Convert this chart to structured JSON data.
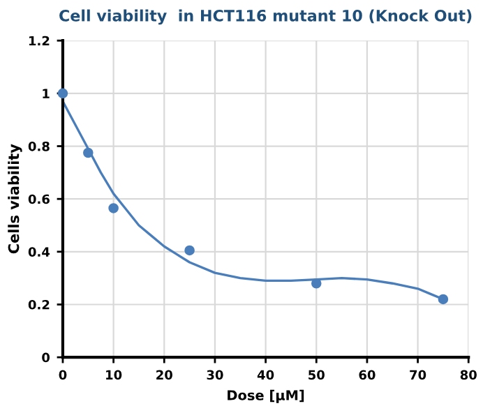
{
  "chart_data": {
    "type": "scatter",
    "title": "Cell viability  in HCT116 mutant 10 (Knock Out)",
    "xlabel": "Dose [µM]",
    "ylabel": "Cells viability",
    "series": [
      {
        "color": "#4a7ebb",
        "marker": "circle",
        "x": [
          0,
          5,
          10,
          25,
          50,
          75
        ],
        "values": [
          1.0,
          0.775,
          0.565,
          0.405,
          0.28,
          0.22
        ]
      },
      {
        "type": "line",
        "color": "#4a7ebb",
        "marker": "none",
        "x": [
          0,
          2.5,
          5,
          7.5,
          10,
          12.5,
          15,
          17.5,
          20,
          22.5,
          25,
          30,
          35,
          40,
          45,
          50,
          55,
          60,
          65,
          70,
          72.5,
          75
        ],
        "values": [
          0.97,
          0.88,
          0.79,
          0.7,
          0.62,
          0.56,
          0.5,
          0.46,
          0.42,
          0.39,
          0.36,
          0.32,
          0.3,
          0.29,
          0.29,
          0.295,
          0.3,
          0.295,
          0.28,
          0.26,
          0.24,
          0.22
        ]
      }
    ],
    "xlim": [
      0,
      80
    ],
    "xticks": [
      0,
      10,
      20,
      30,
      40,
      50,
      60,
      70,
      80
    ],
    "ylim": [
      0,
      1.2
    ],
    "yticks": [
      {
        "value": 0,
        "label": "0"
      },
      {
        "value": 0.2,
        "label": "0.2"
      },
      {
        "value": 0.4,
        "label": "0.4"
      },
      {
        "value": 0.6,
        "label": "0.6"
      },
      {
        "value": 0.8,
        "label": "0.8"
      },
      {
        "value": 1,
        "label": "1"
      },
      {
        "value": 1.2,
        "label": "1.2"
      }
    ],
    "grid": true
  }
}
